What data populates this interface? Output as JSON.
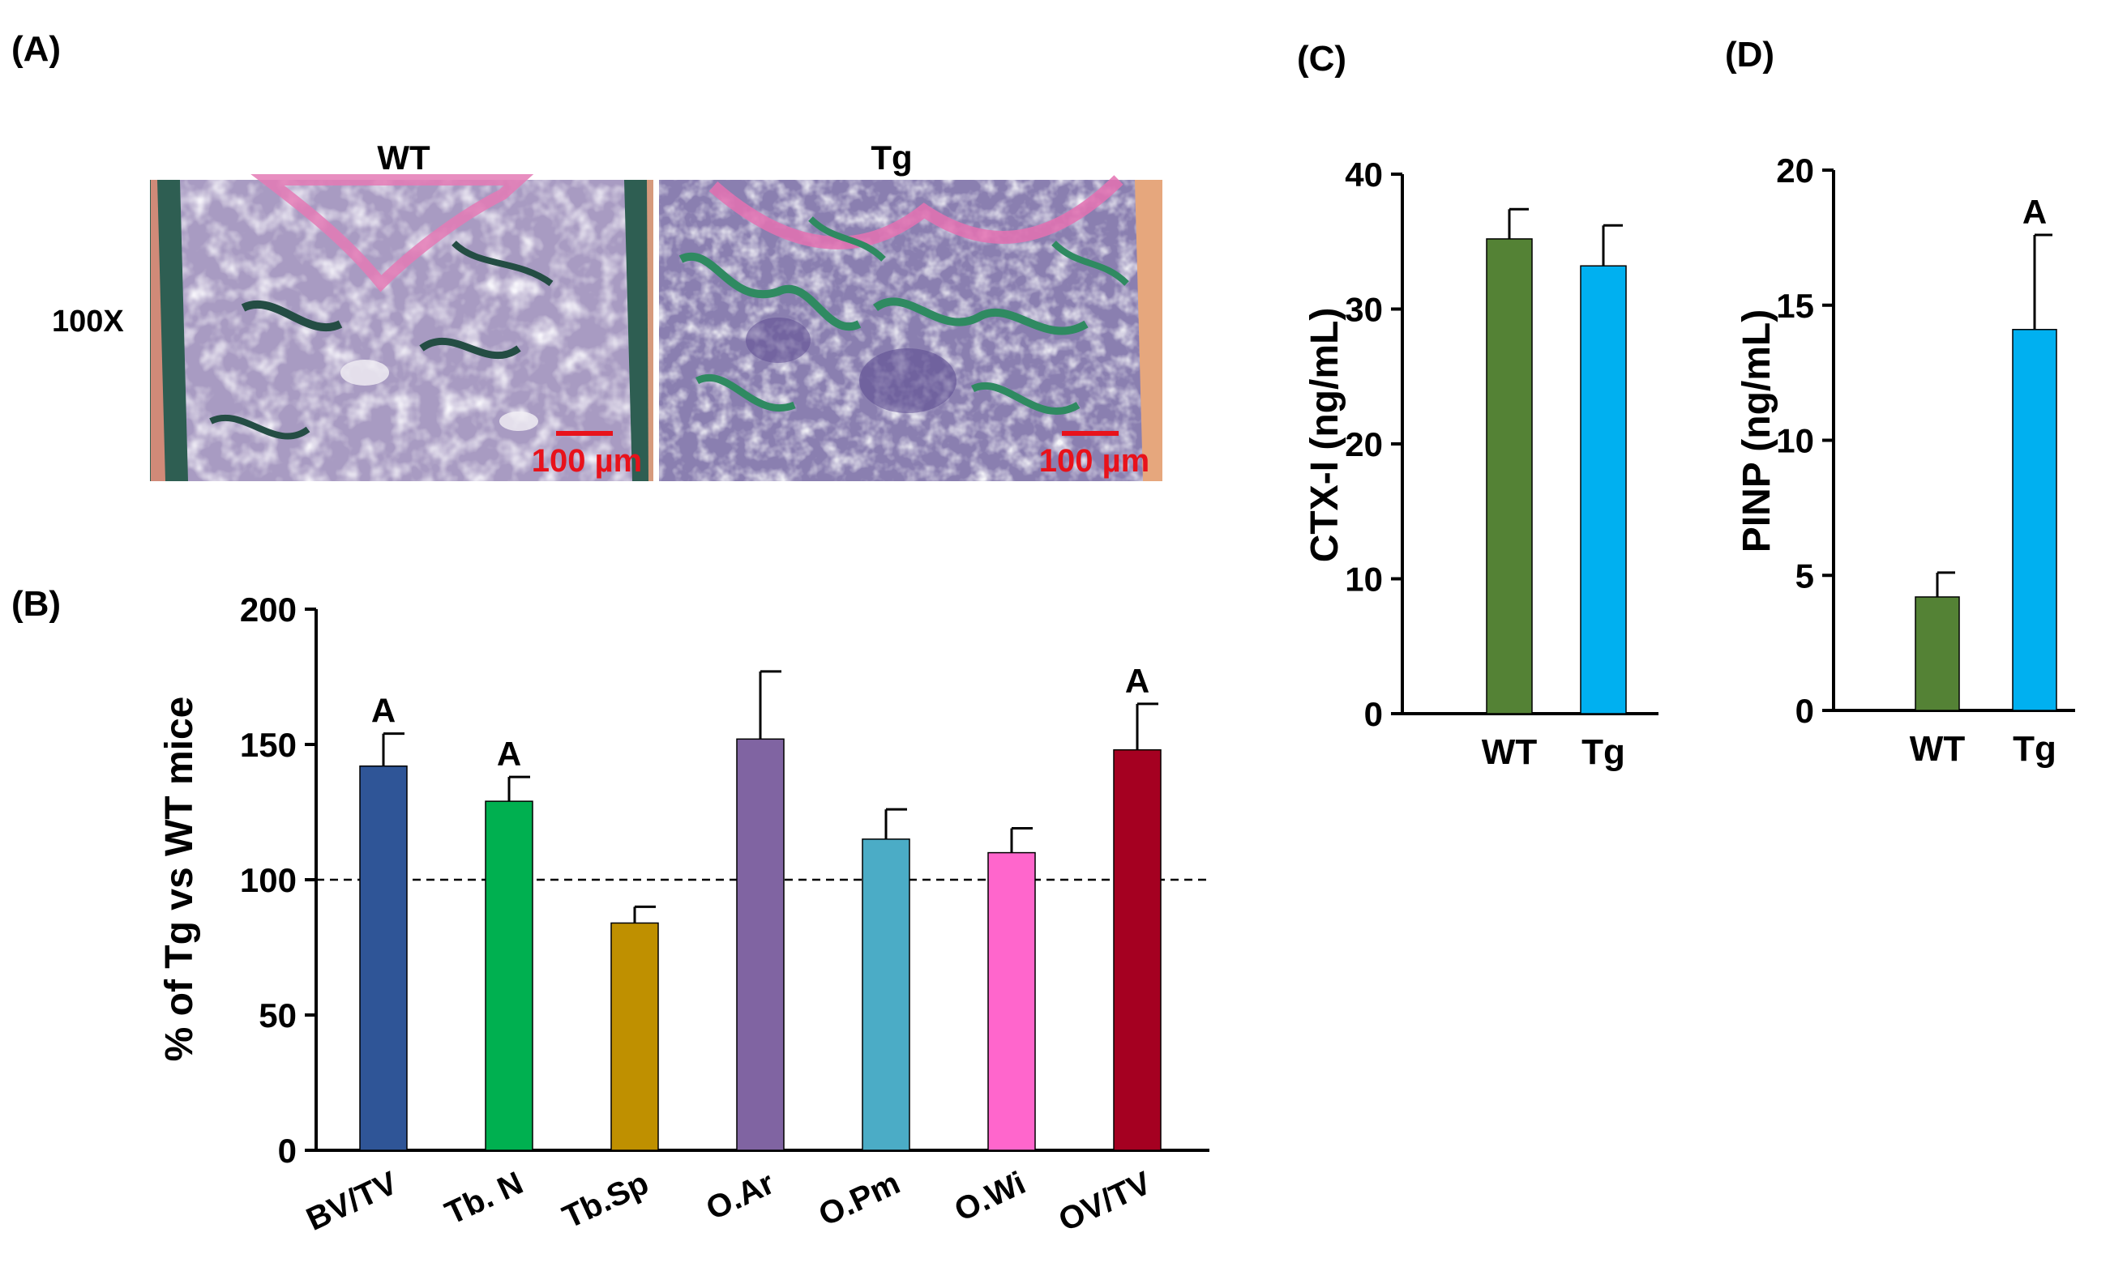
{
  "panel_labels": {
    "a": "(A)",
    "b": "(B)",
    "c": "(C)",
    "d": "(D)"
  },
  "histology": {
    "magnification": "100X",
    "scale_bar_color": "#e8121b",
    "images": [
      {
        "label": "WT",
        "scale_bar": "100 µm"
      },
      {
        "label": "Tg",
        "scale_bar": "100 µm"
      }
    ]
  },
  "chart_data": [
    {
      "panel": "(B)",
      "type": "bar",
      "ylabel": "% of Tg vs WT mice",
      "ylim": [
        0,
        200
      ],
      "yticks": [
        0,
        50,
        100,
        150,
        200
      ],
      "reference_line": 100,
      "categories": [
        "BV/TV",
        "Tb. N",
        "Tb.Sp",
        "O.Ar",
        "O.Pm",
        "O.Wi",
        "OV/TV"
      ],
      "values": [
        142,
        129,
        84,
        152,
        115,
        110,
        148
      ],
      "errors": [
        12,
        9,
        6,
        25,
        11,
        9,
        17
      ],
      "annotations": [
        "A",
        "A",
        "",
        "",
        "",
        "",
        "A"
      ],
      "colors": [
        "#2f5597",
        "#00b050",
        "#bf9000",
        "#8064a2",
        "#4bacc6",
        "#ff66cc",
        "#a50021"
      ]
    },
    {
      "panel": "(C)",
      "type": "bar",
      "ylabel": "CTX-I (ng/mL)",
      "ylim": [
        0,
        40
      ],
      "yticks": [
        0,
        10,
        20,
        30,
        40
      ],
      "categories": [
        "WT",
        "Tg"
      ],
      "values": [
        35.2,
        33.2
      ],
      "errors": [
        2.2,
        3.0
      ],
      "annotations": [
        "",
        ""
      ],
      "colors": [
        "#548235",
        "#00b0f0"
      ]
    },
    {
      "panel": "(D)",
      "type": "bar",
      "ylabel": "PINP (ng/mL)",
      "ylim": [
        0,
        20
      ],
      "yticks": [
        0,
        5,
        10,
        15,
        20
      ],
      "categories": [
        "WT",
        "Tg"
      ],
      "values": [
        4.2,
        14.1
      ],
      "errors": [
        0.9,
        3.5
      ],
      "annotations": [
        "",
        "A"
      ],
      "colors": [
        "#548235",
        "#00b0f0"
      ]
    }
  ]
}
